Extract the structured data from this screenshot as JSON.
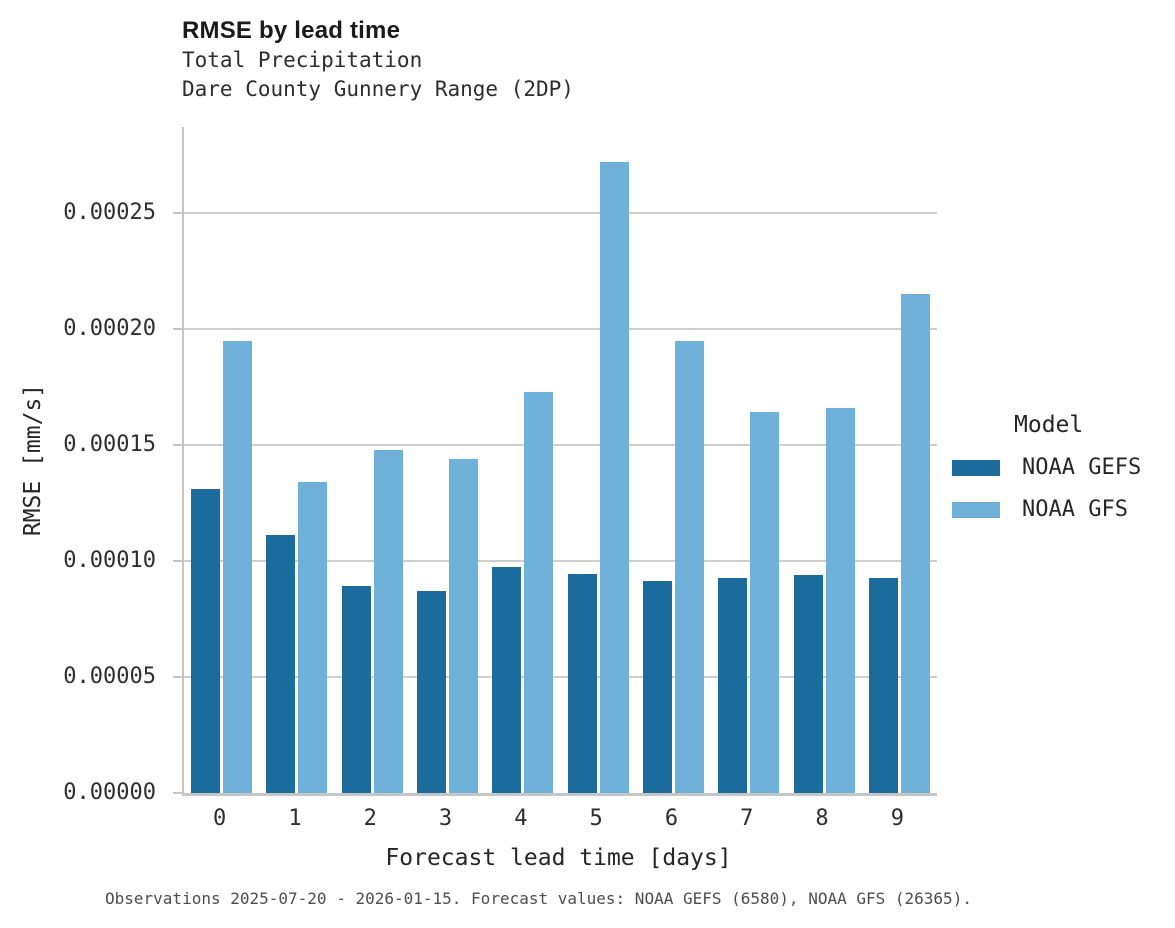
{
  "header": {
    "title": "RMSE by lead time",
    "subtitle_line1": "Total Precipitation",
    "subtitle_line2": "Dare County Gunnery Range (2DP)"
  },
  "legend": {
    "title": "Model",
    "entries": [
      "NOAA GEFS",
      "NOAA GFS"
    ]
  },
  "footer": {
    "text": "Observations 2025-07-20 - 2026-01-15. Forecast values: NOAA GEFS (6580), NOAA GFS (26365)."
  },
  "colors": {
    "noaa_gefs": "#1c6b9d",
    "noaa_gfs": "#70b1d9",
    "gridline": "#cfcfcf",
    "spine": "#c6c6c6"
  },
  "chart_data": {
    "type": "bar",
    "title": "RMSE by lead time",
    "subtitle": [
      "Total Precipitation",
      "Dare County Gunnery Range (2DP)"
    ],
    "xlabel": "Forecast lead time [days]",
    "ylabel": "RMSE [mm/s]",
    "categories": [
      "0",
      "1",
      "2",
      "3",
      "4",
      "5",
      "6",
      "7",
      "8",
      "9"
    ],
    "series": [
      {
        "name": "NOAA GEFS",
        "color": "#1c6b9d",
        "values": [
          0.000131,
          0.000111,
          8.93e-05,
          8.7e-05,
          9.76e-05,
          9.45e-05,
          9.12e-05,
          9.26e-05,
          9.4e-05,
          9.26e-05
        ]
      },
      {
        "name": "NOAA GFS",
        "color": "#70b1d9",
        "values": [
          0.000195,
          0.000134,
          0.000148,
          0.000144,
          0.000173,
          0.000272,
          0.000195,
          0.000164,
          0.000166,
          0.000215
        ]
      }
    ],
    "ylim": [
      0,
      0.000287
    ],
    "yticks": [
      0,
      5e-05,
      0.0001,
      0.00015,
      0.0002,
      0.00025
    ],
    "ytick_labels": [
      "0.00000",
      "0.00005",
      "0.00010",
      "0.00015",
      "0.00020",
      "0.00025"
    ],
    "grid": "horizontal",
    "legend_position": "right",
    "legend_title": "Model"
  }
}
